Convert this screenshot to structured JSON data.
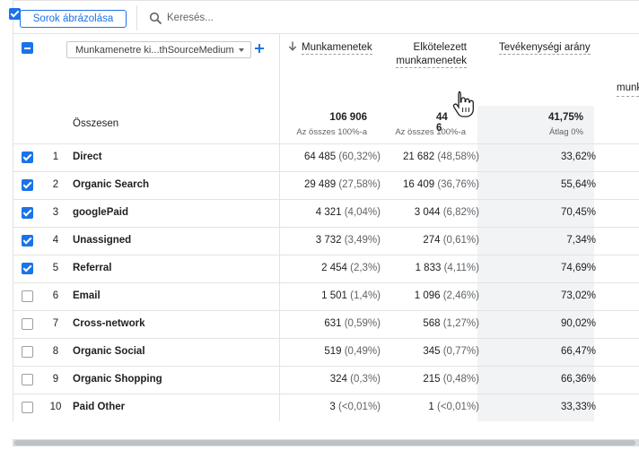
{
  "toolbar": {
    "rows_button_label": "Sorok ábrázolása",
    "search_placeholder": "Keresés..."
  },
  "header": {
    "dimension_label": "Munkamenetre ki...thSourceMedium",
    "columns": {
      "sessions": "Munkamenetek",
      "engaged_line1": "Elkötelezett",
      "engaged_line2": "munkamenetek",
      "engagement_rate": "Tevékenységi arány",
      "partial_next": "munkam"
    }
  },
  "totals": {
    "label": "Összesen",
    "sessions": "106 906",
    "sessions_sub": "Az összes 100%-a",
    "engaged": "44 6",
    "engaged_sub": "Az összes 100%-a",
    "rate": "41,75%",
    "rate_sub": "Átlag 0%"
  },
  "rows": [
    {
      "num": "1",
      "name": "Direct",
      "checked": true,
      "sessions": "64 485",
      "sessions_pct": "(60,32%)",
      "engaged": "21 682",
      "engaged_pct": "(48,58%)",
      "rate": "33,62%"
    },
    {
      "num": "2",
      "name": "Organic Search",
      "checked": true,
      "sessions": "29 489",
      "sessions_pct": "(27,58%)",
      "engaged": "16 409",
      "engaged_pct": "(36,76%)",
      "rate": "55,64%"
    },
    {
      "num": "3",
      "name": "googlePaid",
      "checked": true,
      "sessions": "4 321",
      "sessions_pct": "(4,04%)",
      "engaged": "3 044",
      "engaged_pct": "(6,82%)",
      "rate": "70,45%"
    },
    {
      "num": "4",
      "name": "Unassigned",
      "checked": true,
      "sessions": "3 732",
      "sessions_pct": "(3,49%)",
      "engaged": "274",
      "engaged_pct": "(0,61%)",
      "rate": "7,34%"
    },
    {
      "num": "5",
      "name": "Referral",
      "checked": true,
      "sessions": "2 454",
      "sessions_pct": "(2,3%)",
      "engaged": "1 833",
      "engaged_pct": "(4,11%)",
      "rate": "74,69%"
    },
    {
      "num": "6",
      "name": "Email",
      "checked": false,
      "sessions": "1 501",
      "sessions_pct": "(1,4%)",
      "engaged": "1 096",
      "engaged_pct": "(2,46%)",
      "rate": "73,02%"
    },
    {
      "num": "7",
      "name": "Cross-network",
      "checked": false,
      "sessions": "631",
      "sessions_pct": "(0,59%)",
      "engaged": "568",
      "engaged_pct": "(1,27%)",
      "rate": "90,02%"
    },
    {
      "num": "8",
      "name": "Organic Social",
      "checked": false,
      "sessions": "519",
      "sessions_pct": "(0,49%)",
      "engaged": "345",
      "engaged_pct": "(0,77%)",
      "rate": "66,47%"
    },
    {
      "num": "9",
      "name": "Organic Shopping",
      "checked": false,
      "sessions": "324",
      "sessions_pct": "(0,3%)",
      "engaged": "215",
      "engaged_pct": "(0,48%)",
      "rate": "66,36%"
    },
    {
      "num": "10",
      "name": "Paid Other",
      "checked": false,
      "sessions": "3",
      "sessions_pct": "(<0,01%)",
      "engaged": "1",
      "engaged_pct": "(<0,01%)",
      "rate": "33,33%"
    }
  ],
  "colors": {
    "accent": "#1a73e8",
    "shade": "#f1f3f4"
  }
}
